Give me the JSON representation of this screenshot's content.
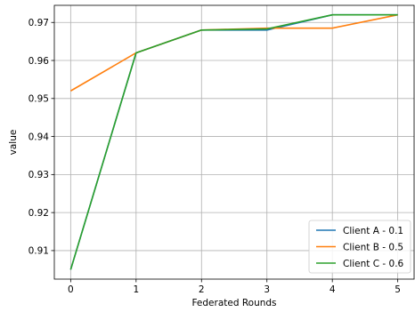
{
  "chart_data": {
    "type": "line",
    "title": "",
    "xlabel": "Federated Rounds",
    "ylabel": "value",
    "x": [
      0,
      1,
      2,
      3,
      4,
      5
    ],
    "xticks": [
      "0",
      "1",
      "2",
      "3",
      "4",
      "5"
    ],
    "yticks": [
      "0.91",
      "0.92",
      "0.93",
      "0.94",
      "0.95",
      "0.96",
      "0.97"
    ],
    "xlim": [
      -0.25,
      5.25
    ],
    "ylim": [
      0.9025,
      0.9745
    ],
    "grid": true,
    "legend_position": "lower-right",
    "series": [
      {
        "name": "Client A - 0.1",
        "color": "#1f77b4",
        "values": [
          0.905,
          0.962,
          0.968,
          0.968,
          0.972,
          0.972
        ]
      },
      {
        "name": "Client B - 0.5",
        "color": "#ff7f0e",
        "values": [
          0.952,
          0.962,
          0.968,
          0.9685,
          0.9685,
          0.972
        ]
      },
      {
        "name": "Client C - 0.6",
        "color": "#2ca02c",
        "values": [
          0.905,
          0.962,
          0.968,
          0.9683,
          0.972,
          0.972
        ]
      }
    ]
  }
}
